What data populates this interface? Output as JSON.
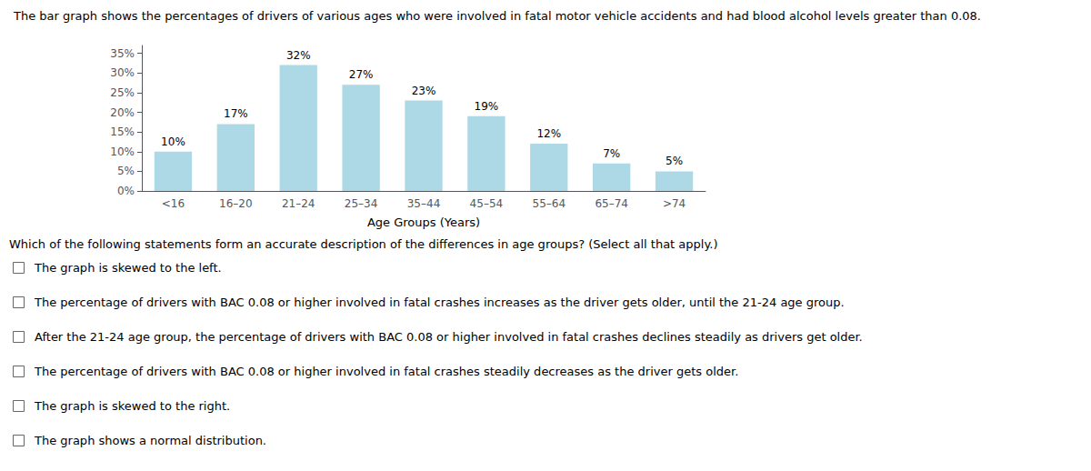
{
  "chart_data": {
    "type": "bar",
    "title": "The bar graph shows the percentages of drivers of various ages who were involved in fatal motor vehicle accidents and had blood alcohol levels greater than 0.08.",
    "categories": [
      "<16",
      "16–20",
      "21–24",
      "25–34",
      "35–44",
      "45–54",
      "55–64",
      "65–74",
      ">74"
    ],
    "values": [
      10,
      17,
      32,
      27,
      23,
      19,
      12,
      7,
      5
    ],
    "value_labels": [
      "10%",
      "17%",
      "32%",
      "27%",
      "23%",
      "19%",
      "12%",
      "7%",
      "5%"
    ],
    "data_labels": true,
    "color": "#ADD8E6",
    "xlabel": "Age Groups (Years)",
    "ylim": [
      0,
      37
    ],
    "yticks": [
      {
        "value": 0,
        "label": "0%"
      },
      {
        "value": 5,
        "label": "5%"
      },
      {
        "value": 10,
        "label": "10%"
      },
      {
        "value": 15,
        "label": "15%"
      },
      {
        "value": 20,
        "label": "20%"
      },
      {
        "value": 25,
        "label": "25%"
      },
      {
        "value": 30,
        "label": "30%"
      },
      {
        "value": 35,
        "label": "35%"
      }
    ],
    "grid": false,
    "question": "Which of the following statements form an accurate description of the differences in age groups? (Select all that apply.)",
    "options": [
      "The graph is skewed to the left.",
      "The percentage of drivers with BAC 0.08 or higher involved in fatal crashes increases as the driver gets older, until the 21-24 age group.",
      "After the 21-24 age group, the percentage of drivers with BAC 0.08 or higher involved in fatal crashes declines steadily as drivers get older.",
      "The percentage of drivers with BAC 0.08 or higher involved in fatal crashes steadily decreases as the driver gets older.",
      "The graph is skewed to the right.",
      "The graph shows a normal distribution."
    ]
  }
}
